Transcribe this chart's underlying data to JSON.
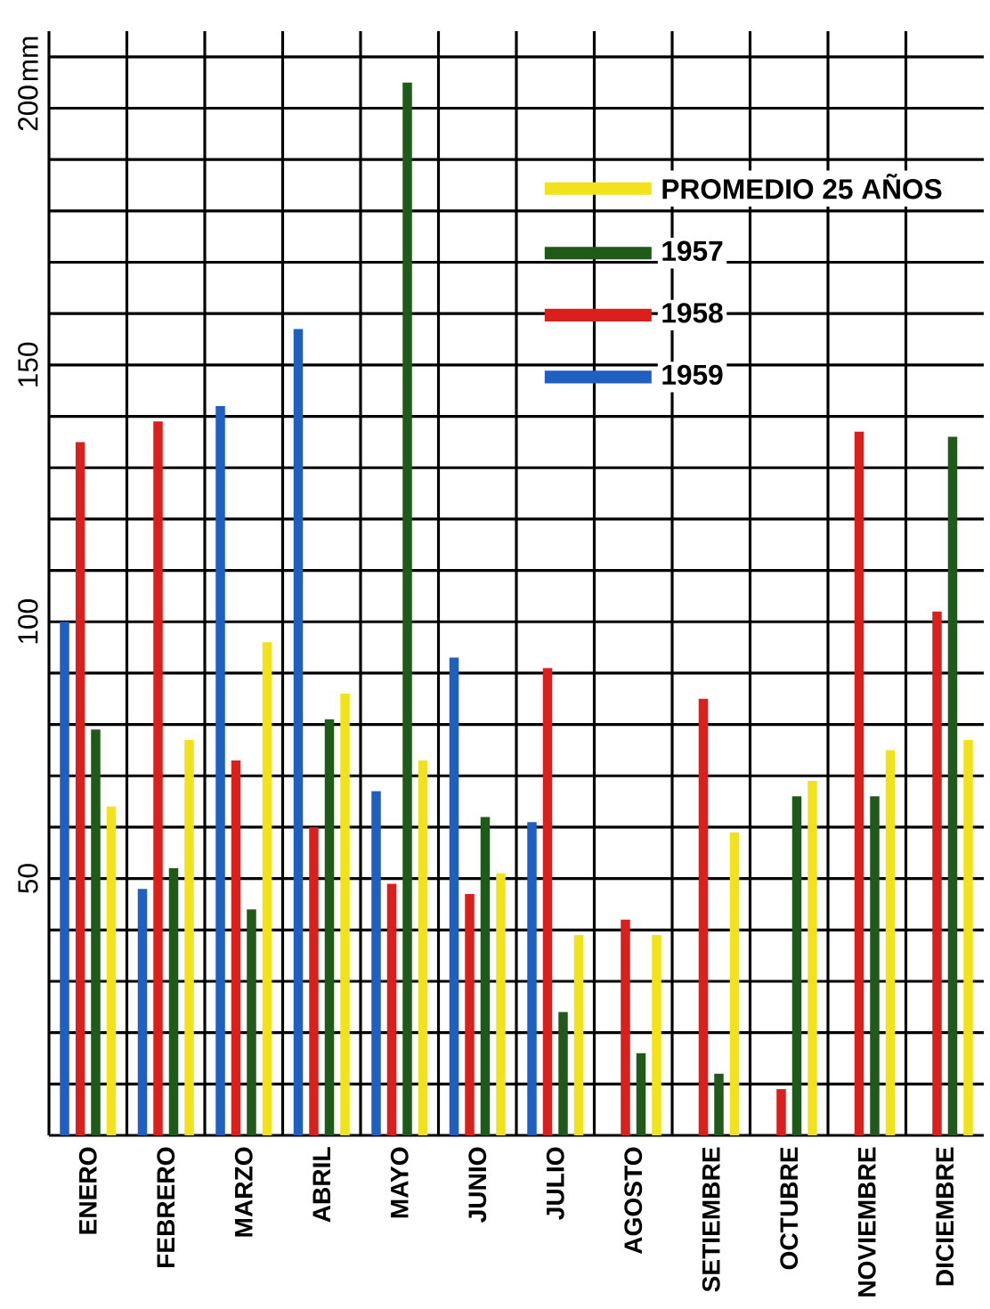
{
  "chart_data": {
    "type": "bar",
    "ylabel": "mm",
    "categories": [
      "ENERO",
      "FEBRERO",
      "MARZO",
      "ABRIL",
      "MAYO",
      "JUNIO",
      "JULIO",
      "AGOSTO",
      "SETIEMBRE",
      "OCTUBRE",
      "NOVIEMBRE",
      "DICIEMBRE"
    ],
    "series": [
      {
        "name": "1959",
        "color": "#1f5fc0",
        "values": [
          100,
          48,
          142,
          157,
          67,
          93,
          61,
          null,
          null,
          null,
          null,
          null
        ]
      },
      {
        "name": "1958",
        "color": "#d9201c",
        "values": [
          135,
          139,
          73,
          60,
          49,
          47,
          91,
          42,
          85,
          9,
          137,
          102
        ]
      },
      {
        "name": "1957",
        "color": "#1f5a1a",
        "values": [
          79,
          52,
          44,
          81,
          205,
          62,
          24,
          16,
          12,
          66,
          66,
          136
        ]
      },
      {
        "name": "PROMEDIO 25 AÑOS",
        "color": "#f2e21c",
        "values": [
          64,
          77,
          96,
          86,
          73,
          51,
          39,
          39,
          59,
          69,
          75,
          77
        ]
      }
    ],
    "ylim": [
      0,
      215
    ],
    "yticks": [
      {
        "value": 10,
        "label": null
      },
      {
        "value": 20,
        "label": null
      },
      {
        "value": 30,
        "label": null
      },
      {
        "value": 40,
        "label": null
      },
      50,
      {
        "value": 60,
        "label": null
      },
      {
        "value": 70,
        "label": null
      },
      {
        "value": 80,
        "label": null
      },
      {
        "value": 90,
        "label": null
      },
      100,
      {
        "value": 110,
        "label": null
      },
      {
        "value": 120,
        "label": null
      },
      {
        "value": 130,
        "label": null
      },
      {
        "value": 140,
        "label": null
      },
      150,
      {
        "value": 160,
        "label": null
      },
      {
        "value": 170,
        "label": null
      },
      {
        "value": 180,
        "label": null
      },
      {
        "value": 190,
        "label": null
      },
      200,
      {
        "value": 210,
        "label": null
      }
    ],
    "grid": true,
    "legend": "top right"
  }
}
